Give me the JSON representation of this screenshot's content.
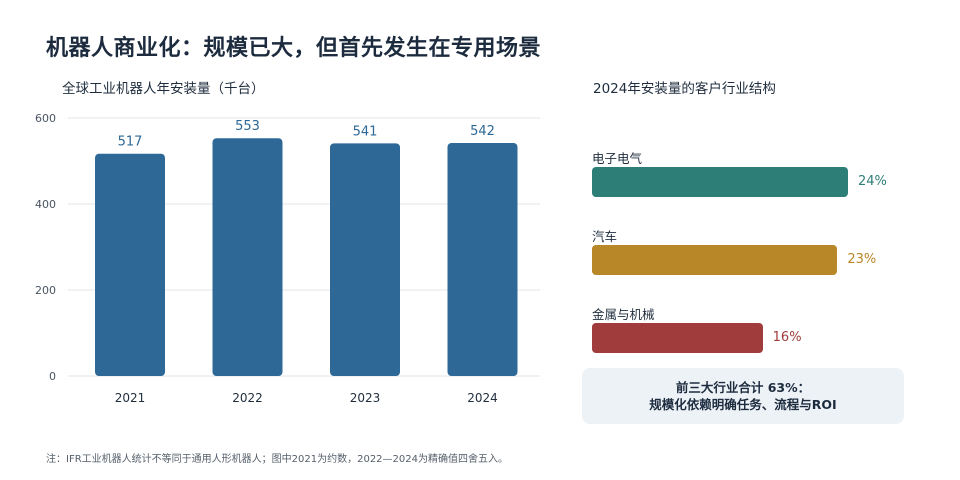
{
  "title": "机器人商业化：规模已大，但首先发生在专用场景",
  "footnote": "注：IFR工业机器人统计不等同于通用人形机器人；图中2021为约数，2022—2024为精确值四舍五入。",
  "callout": {
    "line1": "前三大行业合计 63%：",
    "line2": "规模化依赖明确任务、流程与ROI"
  },
  "colors": {
    "bar": "#2e6896",
    "grid": "#e3e6ea",
    "electronics": "#2e7e78",
    "automotive": "#b88728",
    "metals": "#a03c3c"
  },
  "chart_data": [
    {
      "type": "bar",
      "title": "全球工业机器人年安装量（千台）",
      "categories": [
        "2021",
        "2022",
        "2023",
        "2024"
      ],
      "values": [
        517,
        553,
        541,
        542
      ],
      "ylim": [
        0,
        600
      ],
      "yticks": [
        0,
        200,
        400,
        600
      ],
      "grid": true
    },
    {
      "type": "bar",
      "orientation": "horizontal",
      "title": "2024年安装量的客户行业结构",
      "categories": [
        "电子电气",
        "汽车",
        "金属与机械"
      ],
      "values": [
        24,
        23,
        16
      ],
      "value_labels": [
        "24%",
        "23%",
        "16%"
      ],
      "colors": [
        "#2e7e78",
        "#b88728",
        "#a03c3c"
      ]
    }
  ]
}
